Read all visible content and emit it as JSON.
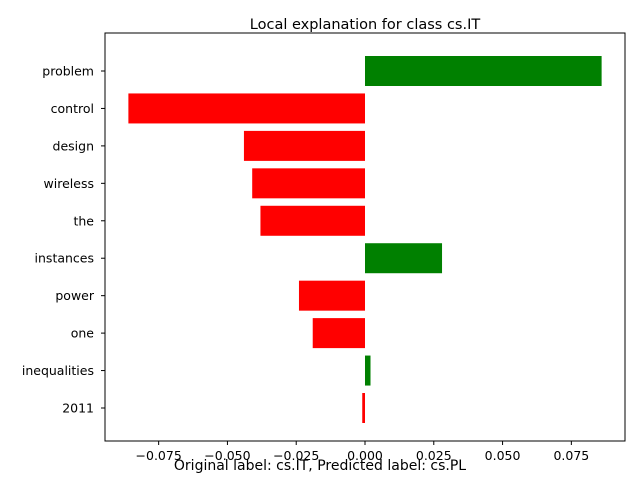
{
  "chart_data": {
    "type": "bar",
    "orientation": "horizontal",
    "title": "Local explanation for class cs.IT",
    "xlabel": "",
    "ylabel": "",
    "categories": [
      "problem",
      "control",
      "design",
      "wireless",
      "the",
      "instances",
      "power",
      "one",
      "inequalities",
      "2011"
    ],
    "values": [
      0.086,
      -0.086,
      -0.044,
      -0.041,
      -0.038,
      0.028,
      -0.024,
      -0.019,
      0.002,
      -0.001
    ],
    "xlim": [
      -0.0945,
      0.0945
    ],
    "xticks": [
      -0.075,
      -0.05,
      -0.025,
      0.0,
      0.025,
      0.05,
      0.075
    ],
    "xtick_labels": [
      "−0.075",
      "−0.050",
      "−0.025",
      "0.000",
      "0.025",
      "0.050",
      "0.075"
    ],
    "grid": false,
    "colors": {
      "positive": "#008000",
      "negative": "#ff0000"
    }
  },
  "caption": "Original label: cs.IT, Predicted label: cs.PL"
}
